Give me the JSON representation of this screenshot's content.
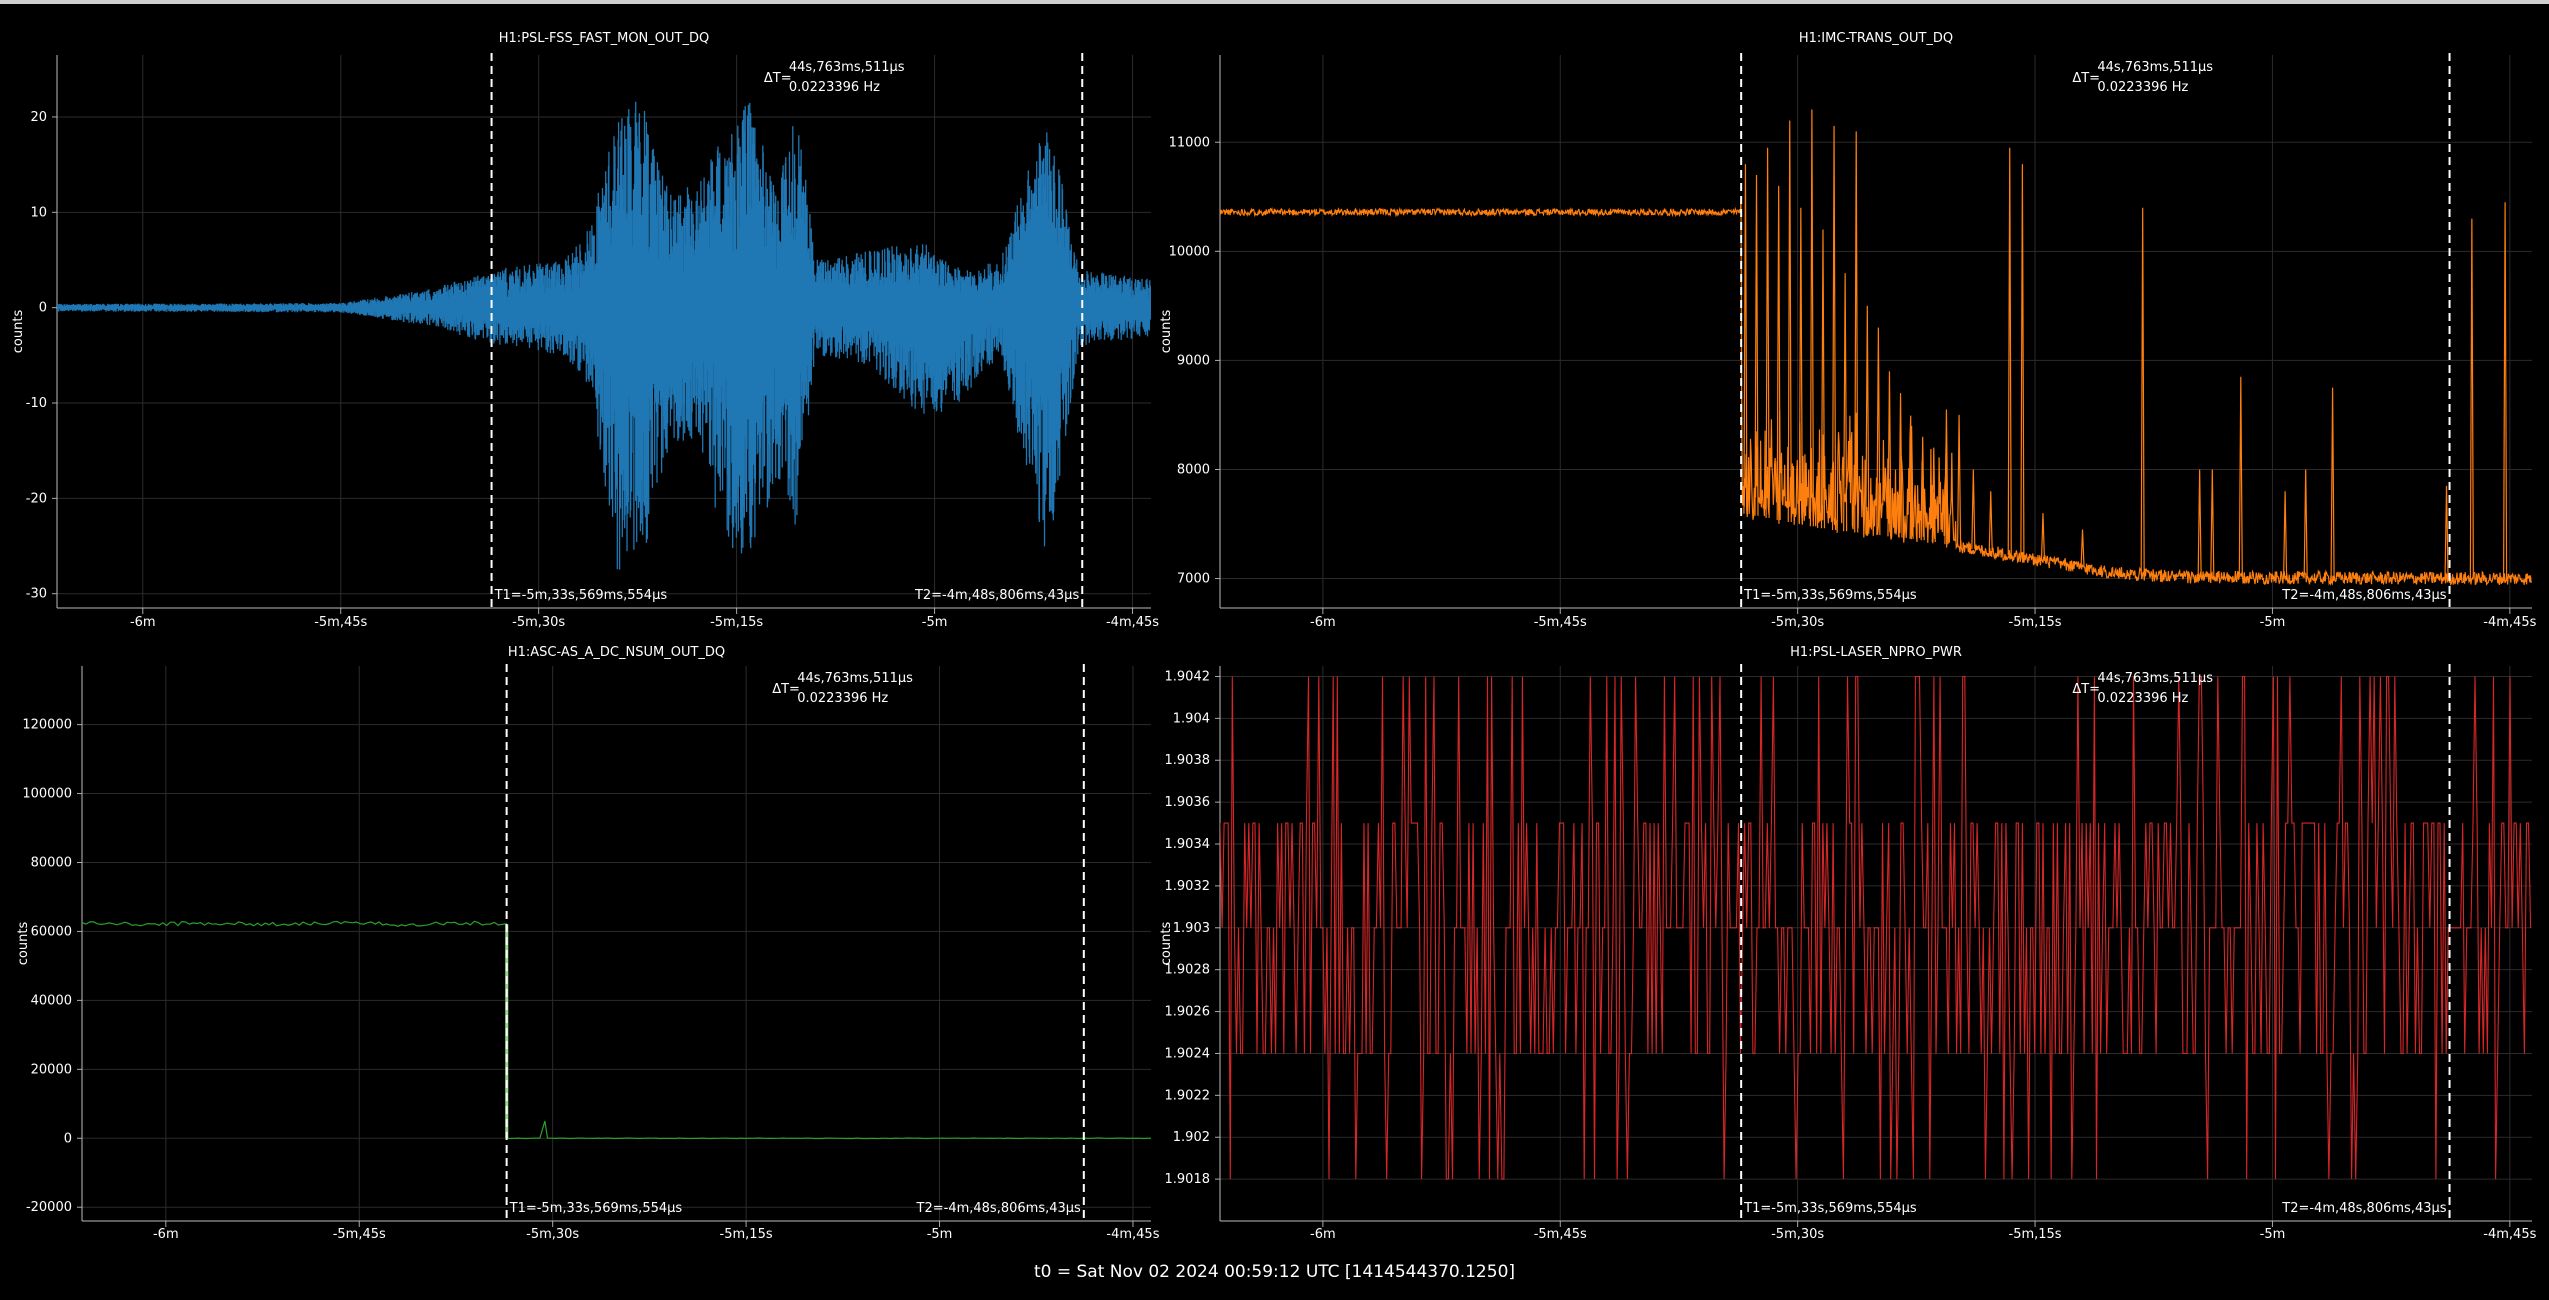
{
  "footer": "t0 = Sat Nov 02 2024 00:59:12 UTC [1414544370.1250]",
  "x_ticks": [
    "-6m",
    "-5m,45s",
    "-5m,30s",
    "-5m,15s",
    "-5m",
    "-4m,45s"
  ],
  "x_tick_values": [
    -360,
    -345,
    -330,
    -315,
    -300,
    -285
  ],
  "xlim": [
    -366.5,
    -283.6
  ],
  "cursors": {
    "t1": -333.57,
    "t2": -288.81,
    "t1_label": "T1=-5m,33s,569ms,554µs",
    "t2_label": "T2=-4m,48s,806ms,43µs",
    "dt_prefix": "ΔT=",
    "dt_time": "44s,763ms,511µs",
    "dt_freq": "0.0223396 Hz"
  },
  "chart_data": [
    {
      "type": "line",
      "title": "H1:PSL-FSS_FAST_MON_OUT_DQ",
      "ylabel": "counts",
      "color": "#1f77b4",
      "ylim": [
        -31.5,
        26.5
      ],
      "yticks": [
        20,
        10,
        0,
        -10,
        -20,
        -30
      ],
      "ytick_labels": [
        "20",
        "10",
        "0",
        "-10",
        "-20",
        "-30"
      ],
      "envelope": [
        {
          "x": -366.5,
          "hi": 0.4,
          "lo": -0.4
        },
        {
          "x": -345,
          "hi": 0.5,
          "lo": -0.5
        },
        {
          "x": -338,
          "hi": 2,
          "lo": -2
        },
        {
          "x": -333.5,
          "hi": 4,
          "lo": -4
        },
        {
          "x": -328,
          "hi": 5,
          "lo": -5
        },
        {
          "x": -326,
          "hi": 9,
          "lo": -9
        },
        {
          "x": -324,
          "hi": 21,
          "lo": -28
        },
        {
          "x": -322,
          "hi": 22,
          "lo": -26
        },
        {
          "x": -320,
          "hi": 12,
          "lo": -14
        },
        {
          "x": -318,
          "hi": 13,
          "lo": -14
        },
        {
          "x": -316,
          "hi": 18,
          "lo": -25
        },
        {
          "x": -314,
          "hi": 22,
          "lo": -27
        },
        {
          "x": -312,
          "hi": 12,
          "lo": -18
        },
        {
          "x": -310.5,
          "hi": 22,
          "lo": -23
        },
        {
          "x": -309,
          "hi": 5,
          "lo": -5
        },
        {
          "x": -305,
          "hi": 6,
          "lo": -6
        },
        {
          "x": -301,
          "hi": 7,
          "lo": -12
        },
        {
          "x": -298,
          "hi": 4,
          "lo": -10
        },
        {
          "x": -295,
          "hi": 5,
          "lo": -5
        },
        {
          "x": -291.5,
          "hi": 21,
          "lo": -27
        },
        {
          "x": -289,
          "hi": 4,
          "lo": -4
        },
        {
          "x": -283.6,
          "hi": 3,
          "lo": -3
        }
      ]
    },
    {
      "type": "line",
      "title": "H1:IMC-TRANS_OUT_DQ",
      "ylabel": "counts",
      "color": "#ff7f0e",
      "ylim": [
        6730,
        11800
      ],
      "yticks": [
        11000,
        10000,
        9000,
        8000,
        7000
      ],
      "ytick_labels": [
        "11000",
        "10000",
        "9000",
        "8000",
        "7000"
      ],
      "baseline": [
        {
          "x": -366.5,
          "y": 10360
        },
        {
          "x": -333.6,
          "y": 10360
        },
        {
          "x": -333.5,
          "y": 7600
        },
        {
          "x": -328,
          "y": 7450
        },
        {
          "x": -322,
          "y": 7350
        },
        {
          "x": -316,
          "y": 7200
        },
        {
          "x": -310,
          "y": 7050
        },
        {
          "x": -305,
          "y": 7010
        },
        {
          "x": -283.6,
          "y": 7000
        }
      ],
      "spikes": [
        {
          "x": -333.3,
          "y": 10800
        },
        {
          "x": -332.6,
          "y": 10700
        },
        {
          "x": -331.9,
          "y": 10950
        },
        {
          "x": -331.2,
          "y": 10600
        },
        {
          "x": -330.5,
          "y": 11200
        },
        {
          "x": -329.8,
          "y": 10400
        },
        {
          "x": -329.1,
          "y": 11300
        },
        {
          "x": -328.4,
          "y": 10200
        },
        {
          "x": -327.7,
          "y": 11150
        },
        {
          "x": -327.0,
          "y": 9800
        },
        {
          "x": -326.3,
          "y": 11100
        },
        {
          "x": -325.6,
          "y": 9500
        },
        {
          "x": -324.9,
          "y": 9300
        },
        {
          "x": -324.2,
          "y": 8900
        },
        {
          "x": -323.5,
          "y": 8700
        },
        {
          "x": -322.8,
          "y": 8400
        },
        {
          "x": -322.1,
          "y": 8300
        },
        {
          "x": -321.4,
          "y": 8200
        },
        {
          "x": -320.6,
          "y": 8550
        },
        {
          "x": -319.8,
          "y": 8500
        },
        {
          "x": -318.9,
          "y": 8000
        },
        {
          "x": -317.8,
          "y": 7800
        },
        {
          "x": -316.6,
          "y": 10950
        },
        {
          "x": -315.8,
          "y": 10800
        },
        {
          "x": -314.5,
          "y": 7600
        },
        {
          "x": -312.0,
          "y": 7450
        },
        {
          "x": -308.2,
          "y": 10400
        },
        {
          "x": -304.6,
          "y": 8000
        },
        {
          "x": -303.8,
          "y": 8000
        },
        {
          "x": -302.0,
          "y": 8850
        },
        {
          "x": -299.2,
          "y": 7800
        },
        {
          "x": -297.9,
          "y": 8000
        },
        {
          "x": -296.2,
          "y": 8750
        },
        {
          "x": -289.0,
          "y": 7850
        },
        {
          "x": -287.4,
          "y": 10300
        },
        {
          "x": -285.3,
          "y": 10450
        }
      ]
    },
    {
      "type": "line",
      "title": "H1:ASC-AS_A_DC_NSUM_OUT_DQ",
      "ylabel": "counts",
      "color": "#2ca02c",
      "ylim": [
        -24000,
        137000
      ],
      "yticks": [
        120000,
        100000,
        80000,
        60000,
        40000,
        20000,
        0,
        -20000
      ],
      "ytick_labels": [
        "120000",
        "100000",
        "80000",
        "60000",
        "40000",
        "20000",
        "0",
        "-20000"
      ],
      "points": [
        {
          "x": -366.5,
          "y": 62500
        },
        {
          "x": -362,
          "y": 62000
        },
        {
          "x": -357,
          "y": 62400
        },
        {
          "x": -352,
          "y": 62100
        },
        {
          "x": -347,
          "y": 62500
        },
        {
          "x": -342,
          "y": 62000
        },
        {
          "x": -337,
          "y": 62500
        },
        {
          "x": -333.6,
          "y": 62200
        },
        {
          "x": -333.55,
          "y": 0
        },
        {
          "x": -331,
          "y": 0
        },
        {
          "x": -330.6,
          "y": 5000
        },
        {
          "x": -330.4,
          "y": 0
        },
        {
          "x": -283.6,
          "y": 0
        }
      ]
    },
    {
      "type": "line",
      "title": "H1:PSL-LASER_NPRO_PWR",
      "ylabel": "counts",
      "color": "#d62728",
      "ylim": [
        1.9016,
        1.90425
      ],
      "yticks": [
        1.9042,
        1.904,
        1.9038,
        1.9036,
        1.9034,
        1.9032,
        1.903,
        1.9028,
        1.9026,
        1.9024,
        1.9022,
        1.902,
        1.9018
      ],
      "ytick_labels": [
        "1.9042",
        "1.904",
        "1.9038",
        "1.9036",
        "1.9034",
        "1.9032",
        "1.903",
        "1.9028",
        "1.9026",
        "1.9024",
        "1.9022",
        "1.902",
        "1.9018"
      ],
      "levels": [
        1.9018,
        1.9024,
        1.903,
        1.9035,
        1.9042
      ]
    }
  ]
}
